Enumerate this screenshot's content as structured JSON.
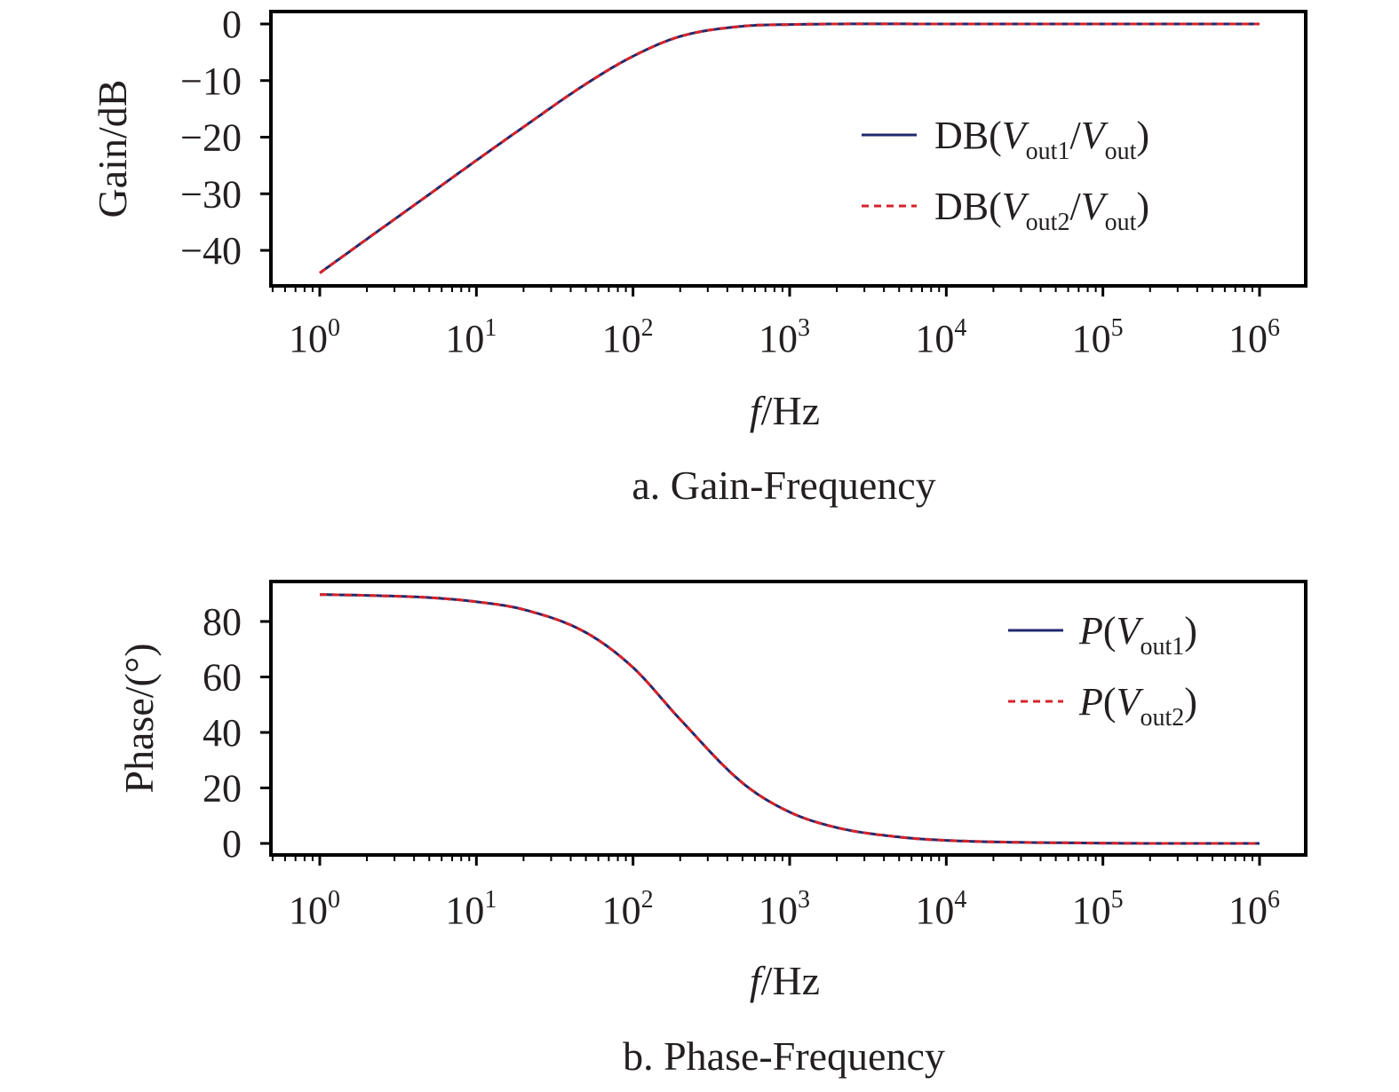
{
  "chart_data": [
    {
      "type": "line",
      "caption": "a. Gain-Frequency",
      "xlabel": "f/Hz",
      "ylabel": "Gain/dB",
      "xscale": "log",
      "xlim": [
        1,
        1000000
      ],
      "ylim": [
        -46,
        2.5
      ],
      "xticks": [
        "10^0",
        "10^1",
        "10^2",
        "10^3",
        "10^4",
        "10^5",
        "10^6"
      ],
      "yticks": [
        0,
        -10,
        -20,
        -30,
        -40
      ],
      "ytick_labels": [
        "0",
        "−10",
        "−20",
        "−30",
        "−40"
      ],
      "grid": false,
      "legend_position": "right",
      "x": [
        1,
        2,
        5,
        10,
        20,
        50,
        100,
        200,
        500,
        1000,
        10000,
        100000,
        1000000
      ],
      "series": [
        {
          "name": "DB(Vout1/Vout)",
          "legend": {
            "prefix": "DB(",
            "italic": "V",
            "sub": "out1",
            "mid": "/",
            "italic2": "V",
            "sub2": "out",
            "suffix": ")"
          },
          "style": "solid",
          "color": "#1f2a6e",
          "values": [
            -44.0,
            -38.0,
            -30.1,
            -24.1,
            -18.2,
            -10.6,
            -5.7,
            -2.2,
            -0.4,
            -0.1,
            0.0,
            0.0,
            0.0
          ]
        },
        {
          "name": "DB(Vout2/Vout)",
          "legend": {
            "prefix": "DB(",
            "italic": "V",
            "sub": "out2",
            "mid": "/",
            "italic2": "V",
            "sub2": "out",
            "suffix": ")"
          },
          "style": "dashed",
          "color": "#d6232a",
          "values": [
            -44.0,
            -38.0,
            -30.1,
            -24.1,
            -18.2,
            -10.6,
            -5.7,
            -2.2,
            -0.4,
            -0.1,
            0.0,
            0.0,
            0.0
          ]
        }
      ]
    },
    {
      "type": "line",
      "caption": "b. Phase-Frequency",
      "xlabel": "f/Hz",
      "ylabel": "Phase/(°)",
      "xscale": "log",
      "xlim": [
        1,
        1000000
      ],
      "ylim": [
        -5,
        95
      ],
      "xticks": [
        "10^0",
        "10^1",
        "10^2",
        "10^3",
        "10^4",
        "10^5",
        "10^6"
      ],
      "yticks": [
        0,
        20,
        40,
        60,
        80
      ],
      "ytick_labels": [
        "0",
        "20",
        "40",
        "60",
        "80"
      ],
      "grid": false,
      "legend_position": "top-right",
      "x": [
        1,
        2,
        5,
        10,
        20,
        50,
        100,
        200,
        500,
        1000,
        2000,
        5000,
        10000,
        100000,
        1000000
      ],
      "series": [
        {
          "name": "P(Vout1)",
          "legend": {
            "prefix": "",
            "italic": "P",
            "mid": "(",
            "italic2": "V",
            "sub2": "out1",
            "suffix": ")"
          },
          "style": "solid",
          "color": "#1f2a6e",
          "values": [
            89.7,
            89.4,
            88.6,
            87.1,
            84.3,
            76.0,
            63.4,
            44.7,
            21.8,
            11.3,
            5.7,
            2.3,
            1.1,
            0.1,
            0.0
          ]
        },
        {
          "name": "P(Vout2)",
          "legend": {
            "prefix": "",
            "italic": "P",
            "mid": "(",
            "italic2": "V",
            "sub2": "out2",
            "suffix": ")"
          },
          "style": "dashed",
          "color": "#d6232a",
          "values": [
            89.7,
            89.4,
            88.6,
            87.1,
            84.3,
            76.0,
            63.4,
            44.7,
            21.8,
            11.3,
            5.7,
            2.3,
            1.1,
            0.1,
            0.0
          ]
        }
      ]
    }
  ]
}
